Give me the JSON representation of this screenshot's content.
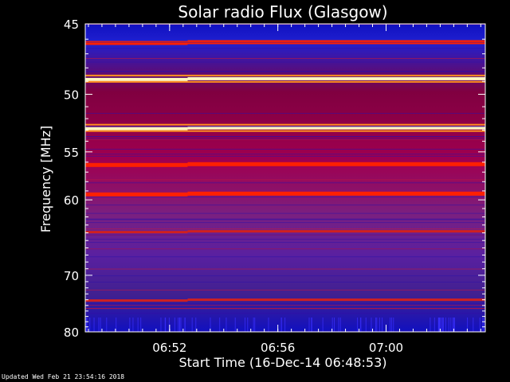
{
  "footer": {
    "updated": "Updated Wed Feb 21 23:54:16 2018"
  },
  "chart_data": {
    "type": "heatmap",
    "title": "Solar radio Flux (Glasgow)",
    "xlabel": "Start Time (16-Dec-14 06:48:53)",
    "ylabel": "Frequency [MHz]",
    "x_start": "06:48:53",
    "x_end": "07:03:40",
    "xticks": [
      "06:52",
      "06:56",
      "07:00"
    ],
    "xtick_values": [
      "06:52:00",
      "06:56:00",
      "07:00:00"
    ],
    "ylim": [
      80,
      45
    ],
    "yticks": [
      45,
      50,
      55,
      60,
      70,
      80
    ],
    "y_scale": "reciprocal",
    "colormap": "blue-red-yellow-white",
    "colors": {
      "low": "#1010c0",
      "mid": "#a00050",
      "high": "#ff2000",
      "peak": "#fff8c0"
    },
    "strong_bands_mhz": [
      {
        "freq": 48.8,
        "level": "peak"
      },
      {
        "freq": 52.8,
        "level": "peak"
      },
      {
        "freq": 46.2,
        "level": "high"
      },
      {
        "freq": 56.2,
        "level": "high"
      },
      {
        "freq": 59.3,
        "level": "high"
      },
      {
        "freq": 63.8,
        "level": "mid"
      },
      {
        "freq": 74.0,
        "level": "mid"
      }
    ],
    "discontinuity_time": "06:52:40"
  }
}
